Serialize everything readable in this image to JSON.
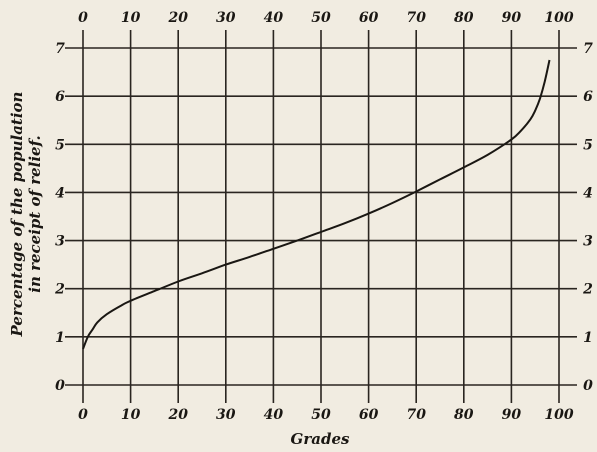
{
  "chart_data": {
    "type": "line",
    "xlabel": "Grades",
    "ylabel_line1": "Percentage of the population",
    "ylabel_line2": "in receipt of relief.",
    "xlim": [
      0,
      100
    ],
    "ylim": [
      0,
      7
    ],
    "x_ticks": [
      "0",
      "10",
      "20",
      "30",
      "40",
      "50",
      "60",
      "70",
      "80",
      "90",
      "100"
    ],
    "y_ticks": [
      "0",
      "1",
      "2",
      "3",
      "4",
      "5",
      "6",
      "7"
    ],
    "grid": true,
    "series": [
      {
        "x": [
          0,
          1,
          2,
          3,
          5,
          8,
          10,
          15,
          20,
          25,
          30,
          35,
          40,
          45,
          50,
          55,
          60,
          65,
          70,
          75,
          80,
          85,
          90,
          92,
          94,
          95,
          96,
          97,
          98
        ],
        "y": [
          0.75,
          1.0,
          1.15,
          1.3,
          1.47,
          1.65,
          1.75,
          1.95,
          2.15,
          2.32,
          2.5,
          2.66,
          2.83,
          3.0,
          3.18,
          3.36,
          3.56,
          3.78,
          4.02,
          4.27,
          4.52,
          4.78,
          5.1,
          5.28,
          5.52,
          5.7,
          5.95,
          6.3,
          6.75
        ]
      }
    ]
  }
}
